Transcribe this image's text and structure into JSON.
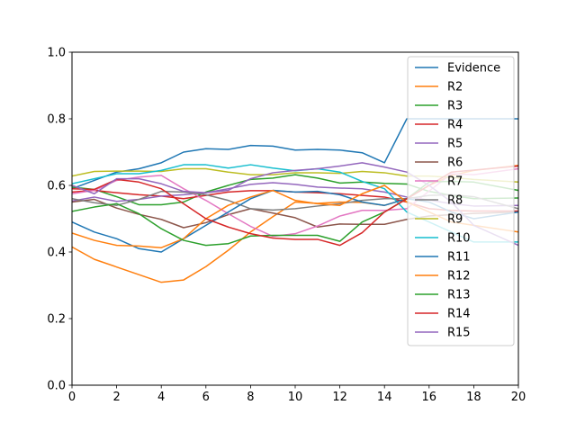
{
  "chart_data": {
    "type": "line",
    "title": "",
    "xlabel": "",
    "ylabel": "",
    "xlim": [
      0,
      20
    ],
    "ylim": [
      0.0,
      1.0
    ],
    "x_ticks": [
      0,
      2,
      4,
      6,
      8,
      10,
      12,
      14,
      16,
      18,
      20
    ],
    "y_ticks": [
      0.0,
      0.2,
      0.4,
      0.6,
      0.8,
      1.0
    ],
    "x_tick_labels": [
      "0",
      "2",
      "4",
      "6",
      "8",
      "10",
      "12",
      "14",
      "16",
      "18",
      "20"
    ],
    "y_tick_labels": [
      "0.0",
      "0.2",
      "0.4",
      "0.6",
      "0.8",
      "1.0"
    ],
    "legend_position": "top-right",
    "grid": false,
    "x": [
      0,
      1,
      2,
      3,
      4,
      5,
      6,
      7,
      8,
      9,
      10,
      11,
      12,
      13,
      14,
      15,
      16,
      17,
      18,
      20
    ],
    "series": [
      {
        "name": "Evidence",
        "color": "#1f77b4",
        "values": [
          0.59,
          0.615,
          0.64,
          0.65,
          0.668,
          0.7,
          0.71,
          0.708,
          0.72,
          0.718,
          0.706,
          0.708,
          0.706,
          0.698,
          0.668,
          0.8,
          0.8,
          0.8,
          0.8,
          0.8
        ]
      },
      {
        "name": "R2",
        "color": "#ff7f0e",
        "values": [
          0.415,
          0.378,
          0.355,
          0.332,
          0.309,
          0.316,
          0.356,
          0.405,
          0.46,
          0.506,
          0.55,
          0.546,
          0.55,
          0.549,
          0.54,
          0.56,
          0.6,
          0.63,
          0.645,
          0.66
        ]
      },
      {
        "name": "R3",
        "color": "#2ca02c",
        "values": [
          0.595,
          0.588,
          0.566,
          0.542,
          0.542,
          0.55,
          0.58,
          0.6,
          0.618,
          0.622,
          0.632,
          0.622,
          0.607,
          0.61,
          0.606,
          0.604,
          0.582,
          0.57,
          0.56,
          0.562
        ]
      },
      {
        "name": "R4",
        "color": "#d62728",
        "values": [
          0.58,
          0.585,
          0.578,
          0.572,
          0.568,
          0.56,
          0.57,
          0.58,
          0.584,
          0.584,
          0.58,
          0.578,
          0.575,
          0.57,
          0.565,
          0.55,
          0.53,
          0.525,
          0.523,
          0.523
        ]
      },
      {
        "name": "R5",
        "color": "#9467bd",
        "values": [
          0.553,
          0.565,
          0.552,
          0.558,
          0.568,
          0.572,
          0.578,
          0.59,
          0.603,
          0.608,
          0.603,
          0.595,
          0.592,
          0.59,
          0.58,
          0.565,
          0.556,
          0.545,
          0.538,
          0.54
        ]
      },
      {
        "name": "R6",
        "color": "#8c564b",
        "values": [
          0.55,
          0.558,
          0.532,
          0.513,
          0.498,
          0.473,
          0.488,
          0.512,
          0.53,
          0.517,
          0.503,
          0.475,
          0.484,
          0.483,
          0.483,
          0.498,
          0.508,
          0.512,
          0.516,
          0.52
        ]
      },
      {
        "name": "R7",
        "color": "#e377c2",
        "values": [
          0.575,
          0.585,
          0.615,
          0.625,
          0.63,
          0.59,
          0.555,
          0.515,
          0.477,
          0.447,
          0.455,
          0.478,
          0.508,
          0.525,
          0.525,
          0.53,
          0.583,
          0.635,
          0.632,
          0.65
        ]
      },
      {
        "name": "R8",
        "color": "#7f7f7f",
        "values": [
          0.56,
          0.548,
          0.54,
          0.558,
          0.582,
          0.58,
          0.572,
          0.555,
          0.53,
          0.526,
          0.53,
          0.538,
          0.545,
          0.555,
          0.56,
          0.56,
          0.57,
          0.572,
          0.566,
          0.53
        ]
      },
      {
        "name": "R9",
        "color": "#bcbd22",
        "values": [
          0.628,
          0.642,
          0.643,
          0.643,
          0.642,
          0.65,
          0.65,
          0.64,
          0.632,
          0.632,
          0.638,
          0.638,
          0.636,
          0.642,
          0.638,
          0.628,
          0.628,
          0.624,
          0.618,
          0.61
        ]
      },
      {
        "name": "R10",
        "color": "#17becf",
        "values": [
          0.605,
          0.62,
          0.635,
          0.635,
          0.645,
          0.662,
          0.662,
          0.652,
          0.662,
          0.652,
          0.644,
          0.65,
          0.64,
          0.612,
          0.59,
          0.52,
          0.49,
          0.46,
          0.43,
          0.43
        ]
      },
      {
        "name": "R11",
        "color": "#1f77b4",
        "values": [
          0.49,
          0.46,
          0.44,
          0.41,
          0.4,
          0.44,
          0.48,
          0.52,
          0.56,
          0.585,
          0.58,
          0.582,
          0.572,
          0.55,
          0.54,
          0.56,
          0.55,
          0.52,
          0.5,
          0.52
        ]
      },
      {
        "name": "R12",
        "color": "#ff7f0e",
        "values": [
          0.457,
          0.435,
          0.42,
          0.418,
          0.413,
          0.44,
          0.5,
          0.54,
          0.565,
          0.585,
          0.555,
          0.545,
          0.54,
          0.575,
          0.6,
          0.55,
          0.52,
          0.49,
          0.48,
          0.46
        ]
      },
      {
        "name": "R13",
        "color": "#2ca02c",
        "values": [
          0.522,
          0.535,
          0.545,
          0.515,
          0.47,
          0.435,
          0.42,
          0.425,
          0.448,
          0.45,
          0.45,
          0.45,
          0.432,
          0.49,
          0.52,
          0.56,
          0.61,
          0.612,
          0.61,
          0.585
        ]
      },
      {
        "name": "R14",
        "color": "#d62728",
        "values": [
          0.59,
          0.588,
          0.618,
          0.61,
          0.59,
          0.545,
          0.5,
          0.475,
          0.455,
          0.442,
          0.438,
          0.438,
          0.42,
          0.458,
          0.52,
          0.56,
          0.6,
          0.64,
          0.646,
          0.658
        ]
      },
      {
        "name": "R15",
        "color": "#9467bd",
        "values": [
          0.6,
          0.575,
          0.62,
          0.62,
          0.605,
          0.582,
          0.578,
          0.585,
          0.62,
          0.638,
          0.645,
          0.65,
          0.658,
          0.668,
          0.655,
          0.64,
          0.6,
          0.55,
          0.48,
          0.42
        ]
      }
    ]
  }
}
